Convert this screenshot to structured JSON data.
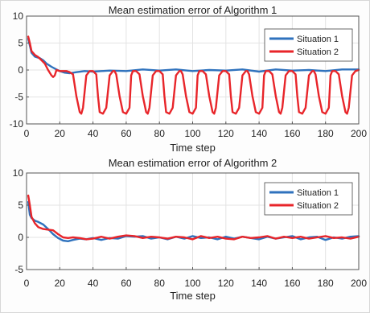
{
  "chart_data": [
    {
      "type": "line",
      "title": "Mean estimation error of Algorithm 1",
      "xlabel": "Time step",
      "ylabel": "",
      "xlim": [
        0,
        200
      ],
      "ylim": [
        -10,
        10
      ],
      "xticks": [
        0,
        20,
        40,
        60,
        80,
        100,
        120,
        140,
        160,
        180,
        200
      ],
      "yticks": [
        10,
        5,
        0,
        -5,
        -10
      ],
      "grid": true,
      "legend_position": "top-right",
      "series": [
        {
          "name": "Situation 1",
          "color": "#2f72bd",
          "x": [
            1,
            3,
            5,
            8,
            10,
            12,
            15,
            18,
            20,
            23,
            26,
            30,
            35,
            40,
            50,
            60,
            70,
            80,
            90,
            100,
            110,
            120,
            130,
            140,
            150,
            160,
            170,
            180,
            190,
            200
          ],
          "y": [
            5.8,
            3.2,
            2.5,
            2.2,
            1.8,
            1.2,
            0.6,
            0.1,
            -0.2,
            -0.5,
            -0.6,
            -0.4,
            -0.2,
            -0.3,
            -0.1,
            -0.2,
            0.1,
            -0.1,
            0.1,
            -0.2,
            0.0,
            -0.1,
            0.1,
            -0.3,
            0.1,
            -0.1,
            0.0,
            -0.2,
            0.1,
            0.1
          ]
        },
        {
          "name": "Situation 2",
          "color": "#e8252a",
          "x": [
            1,
            2,
            3,
            5,
            7,
            9,
            11,
            13,
            15,
            16,
            17,
            18,
            20,
            22,
            24,
            25,
            26,
            28,
            30,
            32,
            33,
            34,
            36,
            38,
            40,
            42,
            43,
            44,
            46,
            48,
            50,
            52,
            53,
            54,
            56,
            58,
            60,
            62,
            63,
            64,
            66,
            68,
            70,
            72,
            73,
            74,
            76,
            78,
            80,
            82,
            83,
            84,
            86,
            88,
            90,
            92,
            93,
            94,
            96,
            98,
            100,
            102,
            103,
            104,
            106,
            108,
            110,
            112,
            113,
            114,
            116,
            118,
            120,
            122,
            123,
            124,
            126,
            128,
            130,
            132,
            133,
            134,
            136,
            138,
            140,
            142,
            143,
            144,
            146,
            148,
            150,
            152,
            153,
            154,
            156,
            158,
            160,
            162,
            163,
            164,
            166,
            168,
            170,
            172,
            173,
            174,
            176,
            178,
            180,
            182,
            183,
            184,
            186,
            188,
            190,
            192,
            193,
            194,
            196,
            198,
            200
          ],
          "y": [
            6.2,
            5.0,
            3.5,
            2.8,
            2.4,
            1.8,
            1.2,
            0.0,
            -1.0,
            -1.3,
            -1.0,
            0.0,
            -0.2,
            -0.2,
            -0.2,
            -0.3,
            -0.4,
            -0.8,
            -4.8,
            -7.8,
            -8.1,
            -7.0,
            -1.0,
            -0.2,
            -0.2,
            -0.8,
            -4.8,
            -7.8,
            -8.1,
            -7.0,
            -1.0,
            -0.2,
            -0.2,
            -0.8,
            -4.8,
            -7.8,
            -8.1,
            -7.0,
            -1.0,
            -0.2,
            -0.2,
            -0.8,
            -4.8,
            -7.8,
            -8.1,
            -7.0,
            -1.0,
            -0.2,
            -0.2,
            -0.8,
            -4.8,
            -7.8,
            -8.1,
            -7.0,
            -1.0,
            -0.2,
            -0.2,
            -0.8,
            -4.8,
            -7.8,
            -8.1,
            -7.0,
            -1.0,
            -0.2,
            -0.2,
            -0.8,
            -4.8,
            -7.8,
            -8.1,
            -7.0,
            -1.0,
            -0.2,
            -0.2,
            -0.8,
            -4.8,
            -7.8,
            -8.1,
            -7.0,
            -1.0,
            -0.2,
            -0.2,
            -0.8,
            -4.8,
            -7.8,
            -8.1,
            -7.0,
            -1.0,
            -0.2,
            -0.2,
            -0.8,
            -4.8,
            -7.8,
            -8.1,
            -7.0,
            -1.0,
            -0.2,
            -0.2,
            -0.8,
            -4.8,
            -7.8,
            -8.1,
            -7.0,
            -1.0,
            -0.2,
            -0.2,
            -0.8,
            -4.8,
            -7.8,
            -8.1,
            -7.0,
            -1.0,
            -0.2,
            -0.2,
            -0.8,
            -4.8,
            -7.8,
            -8.1,
            -7.0,
            -1.0,
            -0.2,
            0.0
          ]
        }
      ]
    },
    {
      "type": "line",
      "title": "Mean estimation error of Algorithm 2",
      "xlabel": "Time step",
      "ylabel": "",
      "xlim": [
        0,
        200
      ],
      "ylim": [
        -5,
        10
      ],
      "xticks": [
        0,
        20,
        40,
        60,
        80,
        100,
        120,
        140,
        160,
        180,
        200
      ],
      "yticks": [
        10,
        5,
        0,
        -5
      ],
      "grid": true,
      "legend_position": "top-right",
      "series": [
        {
          "name": "Situation 1",
          "color": "#2f72bd",
          "x": [
            1,
            2,
            3,
            5,
            7,
            10,
            13,
            16,
            19,
            22,
            25,
            28,
            32,
            36,
            40,
            45,
            50,
            55,
            60,
            65,
            70,
            75,
            80,
            85,
            90,
            95,
            100,
            105,
            110,
            115,
            120,
            125,
            130,
            135,
            140,
            145,
            150,
            155,
            160,
            165,
            170,
            175,
            180,
            185,
            190,
            195,
            200
          ],
          "y": [
            5.5,
            3.5,
            3.0,
            2.6,
            2.4,
            2.0,
            1.3,
            0.5,
            -0.1,
            -0.5,
            -0.6,
            -0.4,
            -0.2,
            -0.3,
            -0.1,
            -0.4,
            -0.1,
            -0.2,
            0.2,
            0.1,
            0.2,
            -0.2,
            0.0,
            -0.3,
            0.1,
            -0.2,
            0.2,
            -0.1,
            0.0,
            -0.3,
            0.1,
            -0.2,
            0.1,
            -0.1,
            -0.3,
            0.1,
            -0.2,
            0.0,
            0.2,
            -0.3,
            0.0,
            0.1,
            -0.4,
            0.0,
            -0.2,
            0.1,
            0.2
          ]
        },
        {
          "name": "Situation 2",
          "color": "#e8252a",
          "x": [
            1,
            2,
            3,
            5,
            7,
            10,
            13,
            16,
            19,
            22,
            25,
            28,
            32,
            36,
            40,
            45,
            50,
            55,
            60,
            65,
            70,
            75,
            80,
            85,
            90,
            95,
            100,
            105,
            110,
            115,
            120,
            125,
            130,
            135,
            140,
            145,
            150,
            155,
            160,
            165,
            170,
            175,
            180,
            185,
            190,
            195,
            200
          ],
          "y": [
            6.5,
            5.0,
            3.2,
            2.2,
            1.6,
            1.3,
            1.2,
            1.1,
            0.5,
            0.0,
            -0.1,
            0.0,
            -0.1,
            -0.3,
            -0.2,
            0.1,
            -0.2,
            0.1,
            0.3,
            0.2,
            -0.1,
            0.1,
            0.0,
            -0.2,
            0.1,
            0.0,
            -0.3,
            0.2,
            -0.1,
            0.1,
            -0.2,
            -0.3,
            0.1,
            -0.1,
            0.0,
            0.2,
            -0.2,
            0.1,
            -0.1,
            0.1,
            -0.2,
            0.0,
            0.2,
            -0.1,
            0.0,
            -0.2,
            0.1
          ]
        }
      ]
    }
  ]
}
